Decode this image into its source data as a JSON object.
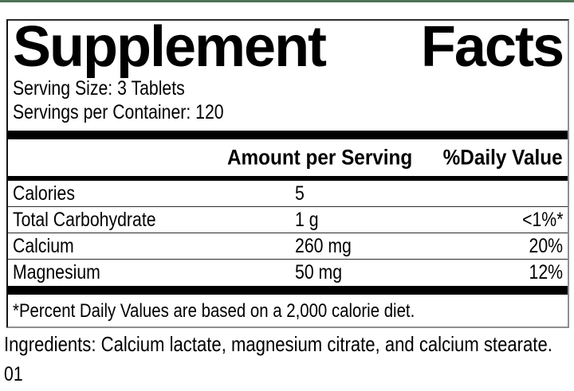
{
  "accent": {
    "top_bar_color": "#4d7356"
  },
  "label": {
    "title": {
      "word1": "Supplement",
      "word2": "Facts"
    },
    "serving_size": "Serving Size: 3 Tablets",
    "servings_per_container": "Servings per Container: 120",
    "columns": {
      "amount_header": "Amount per Serving",
      "daily_value_header": "%Daily Value"
    },
    "rows": [
      {
        "nutrient": "Calories",
        "amount": "5",
        "dv": ""
      },
      {
        "nutrient": "Total Carbohydrate",
        "amount": "1 g",
        "dv": "<1%*"
      },
      {
        "nutrient": "Calcium",
        "amount": "260 mg",
        "dv": "20%"
      },
      {
        "nutrient": "Magnesium",
        "amount": "50 mg",
        "dv": "12%"
      }
    ],
    "footnote": "*Percent Daily Values are based on a 2,000 calorie diet."
  },
  "ingredients": "Ingredients: Calcium lactate, magnesium citrate, and calcium stearate.",
  "footer_code": "01"
}
